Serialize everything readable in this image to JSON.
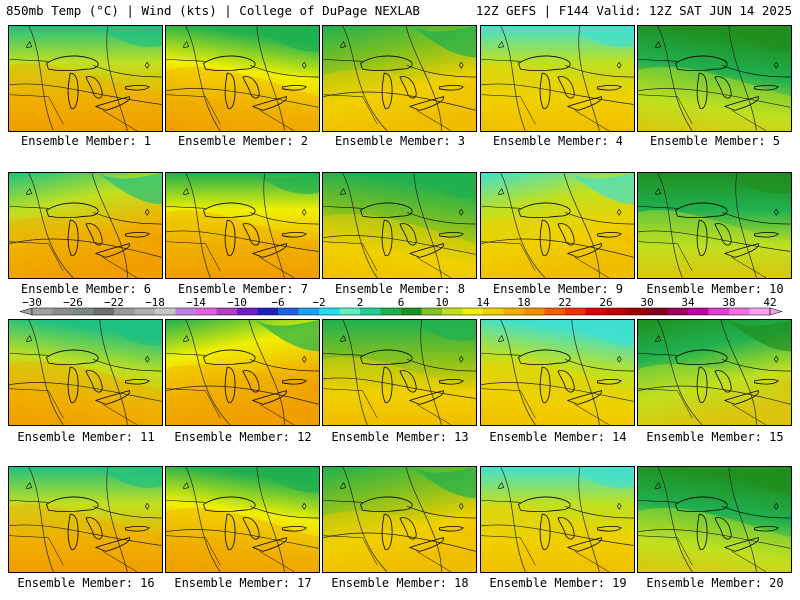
{
  "header": {
    "title_left": "850mb Temp (°C) | Wind (kts) | College of DuPage NEXLAB",
    "title_right": "12Z GEFS | F144 Valid: 12Z SAT JUN 14 2025"
  },
  "panels": [
    {
      "label": "Ensemble Member: 1"
    },
    {
      "label": "Ensemble Member: 2"
    },
    {
      "label": "Ensemble Member: 3"
    },
    {
      "label": "Ensemble Member: 4"
    },
    {
      "label": "Ensemble Member: 5"
    },
    {
      "label": "Ensemble Member: 6"
    },
    {
      "label": "Ensemble Member: 7"
    },
    {
      "label": "Ensemble Member: 8"
    },
    {
      "label": "Ensemble Member: 9"
    },
    {
      "label": "Ensemble Member: 10"
    },
    {
      "label": "Ensemble Member: 11"
    },
    {
      "label": "Ensemble Member: 12"
    },
    {
      "label": "Ensemble Member: 13"
    },
    {
      "label": "Ensemble Member: 14"
    },
    {
      "label": "Ensemble Member: 15"
    },
    {
      "label": "Ensemble Member: 16"
    },
    {
      "label": "Ensemble Member: 17"
    },
    {
      "label": "Ensemble Member: 18"
    },
    {
      "label": "Ensemble Member: 19"
    },
    {
      "label": "Ensemble Member: 20"
    }
  ],
  "colorbar": {
    "tick_labels": [
      "−30",
      "−26",
      "−22",
      "−18",
      "−14",
      "−10",
      "−6",
      "−2",
      "2",
      "6",
      "10",
      "14",
      "18",
      "22",
      "26",
      "30",
      "34",
      "38",
      "42"
    ],
    "colors": [
      "#a0a0a0",
      "#8c8c8c",
      "#7a8a80",
      "#6e6e6e",
      "#9a9a9a",
      "#b0b0b0",
      "#c8c8c8",
      "#c080e0",
      "#e060e0",
      "#b040c0",
      "#7020c0",
      "#2020c0",
      "#2060e0",
      "#20a0f0",
      "#20e0f0",
      "#60f0c0",
      "#20d090",
      "#20b050",
      "#209020",
      "#80c020",
      "#c0e020",
      "#f0f000",
      "#f0d000",
      "#f0b000",
      "#f09000",
      "#f06000",
      "#f03000",
      "#e00000",
      "#c00000",
      "#a00000",
      "#800020",
      "#a00060",
      "#c000a0",
      "#e040d0",
      "#f070e0",
      "#f8a0f0"
    ]
  }
}
